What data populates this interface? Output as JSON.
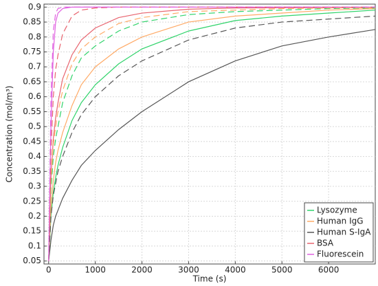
{
  "chart_data": {
    "type": "line",
    "xlabel": "Time (s)",
    "ylabel": "Concentration (mol/m³)",
    "x": [
      0,
      50,
      100,
      150,
      200,
      300,
      500,
      700,
      1000,
      1500,
      2000,
      3000,
      4000,
      5000,
      6000,
      7000
    ],
    "xlim": [
      -100,
      7000
    ],
    "xticks": [
      0,
      1000,
      2000,
      3000,
      4000,
      5000,
      6000
    ],
    "ylim": [
      0.04,
      0.91
    ],
    "yticks": [
      0.05,
      0.1,
      0.15,
      0.2,
      0.25,
      0.3,
      0.35,
      0.4,
      0.45,
      0.5,
      0.55,
      0.6,
      0.65,
      0.7,
      0.75,
      0.8,
      0.85,
      0.9
    ],
    "grid": true,
    "legend": "lower right",
    "series": [
      {
        "name": "Lysozyme",
        "color": "#2fd36a",
        "values": [
          0.05,
          0.2,
          0.28,
          0.33,
          0.37,
          0.43,
          0.52,
          0.58,
          0.64,
          0.71,
          0.76,
          0.82,
          0.855,
          0.87,
          0.88,
          0.89
        ]
      },
      {
        "name": "Human IgG",
        "color": "#ffaa66",
        "values": [
          0.05,
          0.23,
          0.32,
          0.38,
          0.42,
          0.48,
          0.57,
          0.64,
          0.7,
          0.76,
          0.8,
          0.85,
          0.87,
          0.88,
          0.89,
          0.895
        ]
      },
      {
        "name": "Human S-IgA",
        "color": "#555555",
        "values": [
          0.05,
          0.12,
          0.17,
          0.2,
          0.22,
          0.26,
          0.32,
          0.37,
          0.42,
          0.49,
          0.55,
          0.65,
          0.72,
          0.77,
          0.8,
          0.825
        ]
      },
      {
        "name": "BSA",
        "color": "#e8636e",
        "values": [
          0.05,
          0.33,
          0.46,
          0.53,
          0.58,
          0.66,
          0.74,
          0.79,
          0.83,
          0.865,
          0.88,
          0.893,
          0.897,
          0.898,
          0.898,
          0.898
        ]
      },
      {
        "name": "Fluorescein",
        "color": "#e060e0",
        "values": [
          0.05,
          0.5,
          0.75,
          0.85,
          0.88,
          0.895,
          0.9,
          0.9,
          0.9,
          0.9,
          0.9,
          0.9,
          0.9,
          0.9,
          0.9,
          0.9
        ]
      },
      {
        "color": "#2fd36a",
        "dashed": true,
        "values": [
          0.05,
          0.29,
          0.4,
          0.46,
          0.5,
          0.58,
          0.67,
          0.73,
          0.77,
          0.82,
          0.85,
          0.875,
          0.885,
          0.89,
          0.895,
          0.897
        ]
      },
      {
        "color": "#ffaa66",
        "dashed": true,
        "values": [
          0.05,
          0.32,
          0.44,
          0.5,
          0.55,
          0.62,
          0.71,
          0.76,
          0.8,
          0.845,
          0.865,
          0.885,
          0.89,
          0.895,
          0.897,
          0.898
        ]
      },
      {
        "color": "#555555",
        "dashed": true,
        "values": [
          0.05,
          0.2,
          0.27,
          0.31,
          0.35,
          0.4,
          0.48,
          0.54,
          0.6,
          0.67,
          0.72,
          0.79,
          0.83,
          0.85,
          0.86,
          0.87
        ]
      },
      {
        "color": "#e8636e",
        "dashed": true,
        "values": [
          0.05,
          0.42,
          0.6,
          0.69,
          0.74,
          0.81,
          0.87,
          0.89,
          0.897,
          0.9,
          0.9,
          0.9,
          0.9,
          0.9,
          0.9,
          0.9
        ]
      },
      {
        "color": "#e060e0",
        "dashed": true,
        "values": [
          0.05,
          0.6,
          0.82,
          0.88,
          0.895,
          0.9,
          0.9,
          0.9,
          0.9,
          0.9,
          0.9,
          0.9,
          0.9,
          0.9,
          0.9,
          0.9
        ]
      }
    ]
  }
}
